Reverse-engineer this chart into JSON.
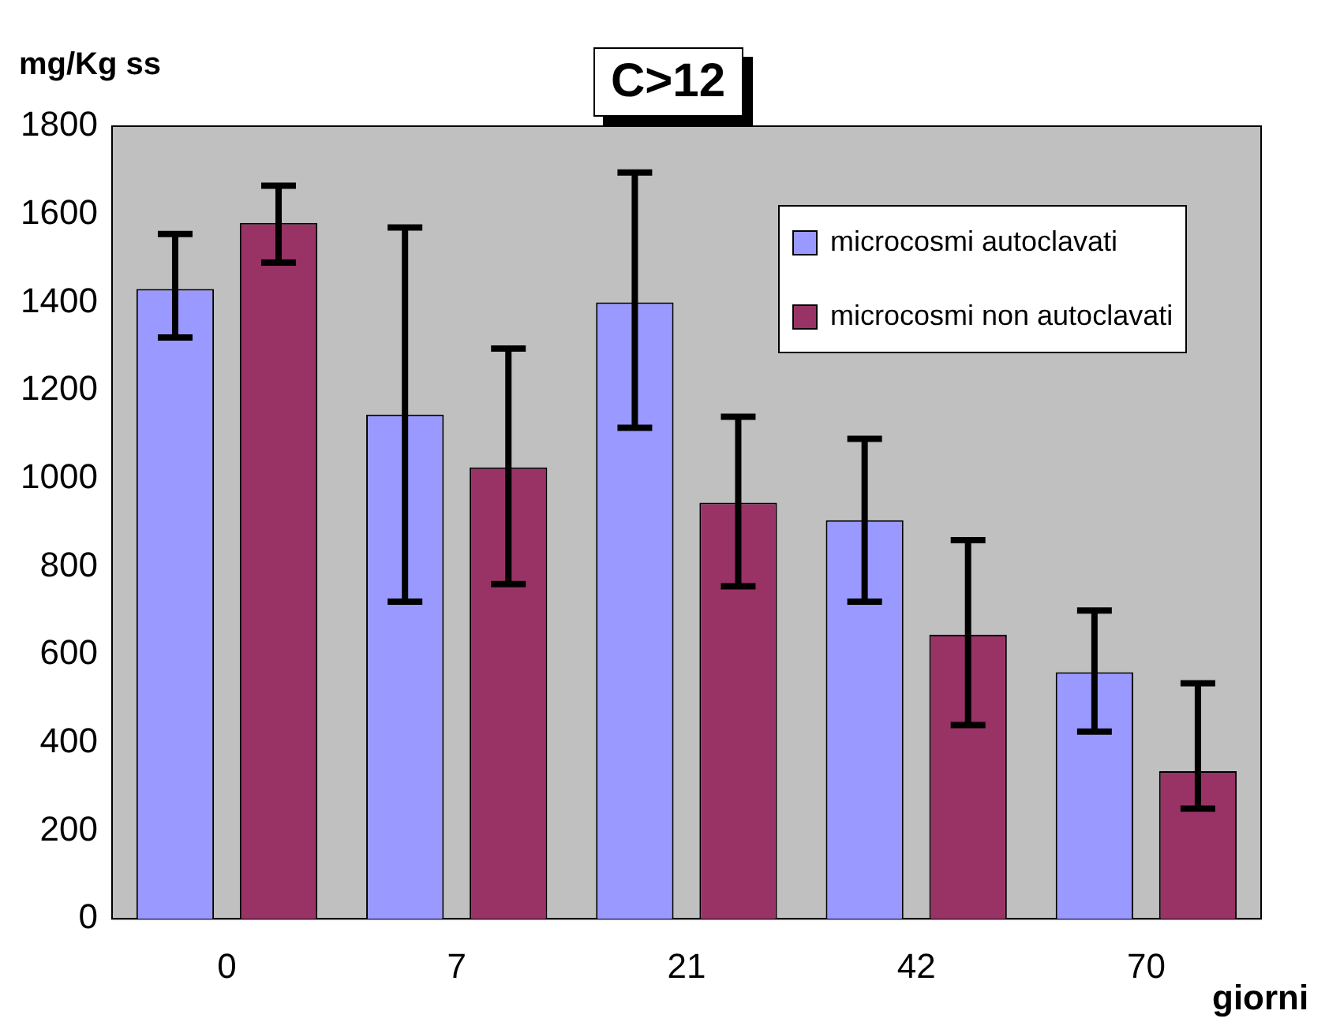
{
  "chart_data": {
    "type": "bar",
    "title": "C>12",
    "ylabel": "mg/Kg ss",
    "xlabel": "giorni",
    "categories": [
      "0",
      "7",
      "21",
      "42",
      "70"
    ],
    "series": [
      {
        "name": "microcosmi autoclavati",
        "color": "#9999ff",
        "values": [
          1430,
          1145,
          1400,
          905,
          560
        ],
        "errors": [
          [
            1320,
            1555
          ],
          [
            720,
            1570
          ],
          [
            1115,
            1695
          ],
          [
            720,
            1090
          ],
          [
            425,
            700
          ]
        ]
      },
      {
        "name": "microcosmi non autoclavati",
        "color": "#993366",
        "values": [
          1580,
          1025,
          945,
          645,
          335
        ],
        "errors": [
          [
            1490,
            1665
          ],
          [
            760,
            1295
          ],
          [
            755,
            1140
          ],
          [
            440,
            860
          ],
          [
            250,
            535
          ]
        ]
      }
    ],
    "ylim": [
      0,
      1800
    ],
    "yticks": [
      0,
      200,
      400,
      600,
      800,
      1000,
      1200,
      1400,
      1600,
      1800
    ],
    "grid": false,
    "legend": "top right"
  }
}
